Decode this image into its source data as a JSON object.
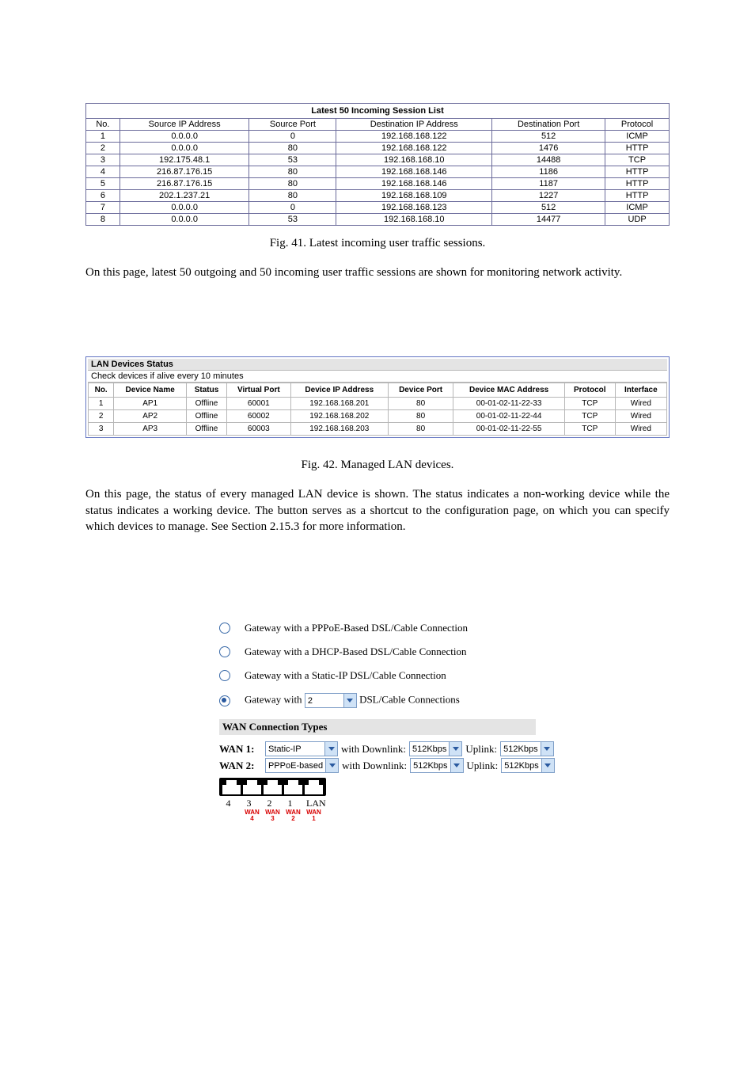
{
  "sessions": {
    "title": "Latest 50 Incoming Session List",
    "columns": [
      "No.",
      "Source IP Address",
      "Source Port",
      "Destination IP Address",
      "Destination Port",
      "Protocol"
    ],
    "rows": [
      [
        "1",
        "0.0.0.0",
        "0",
        "192.168.168.122",
        "512",
        "ICMP"
      ],
      [
        "2",
        "0.0.0.0",
        "80",
        "192.168.168.122",
        "1476",
        "HTTP"
      ],
      [
        "3",
        "192.175.48.1",
        "53",
        "192.168.168.10",
        "14488",
        "TCP"
      ],
      [
        "4",
        "216.87.176.15",
        "80",
        "192.168.168.146",
        "1186",
        "HTTP"
      ],
      [
        "5",
        "216.87.176.15",
        "80",
        "192.168.168.146",
        "1187",
        "HTTP"
      ],
      [
        "6",
        "202.1.237.21",
        "80",
        "192.168.168.109",
        "1227",
        "HTTP"
      ],
      [
        "7",
        "0.0.0.0",
        "0",
        "192.168.168.123",
        "512",
        "ICMP"
      ],
      [
        "8",
        "0.0.0.0",
        "53",
        "192.168.168.10",
        "14477",
        "UDP"
      ]
    ]
  },
  "caption1": "Fig. 41. Latest incoming user traffic sessions.",
  "para1": "On this page, latest 50 outgoing and 50 incoming user traffic sessions are shown for monitoring network activity.",
  "lan": {
    "bar": "LAN Devices Status",
    "sub": "Check devices if alive every 10 minutes",
    "columns": [
      "No.",
      "Device Name",
      "Status",
      "Virtual Port",
      "Device IP Address",
      "Device Port",
      "Device MAC Address",
      "Protocol",
      "Interface"
    ],
    "rows": [
      [
        "1",
        "AP1",
        "Offline",
        "60001",
        "192.168.168.201",
        "80",
        "00-01-02-11-22-33",
        "TCP",
        "Wired"
      ],
      [
        "2",
        "AP2",
        "Offline",
        "60002",
        "192.168.168.202",
        "80",
        "00-01-02-11-22-44",
        "TCP",
        "Wired"
      ],
      [
        "3",
        "AP3",
        "Offline",
        "60003",
        "192.168.168.203",
        "80",
        "00-01-02-11-22-55",
        "TCP",
        "Wired"
      ]
    ]
  },
  "caption2": "Fig. 42. Managed LAN devices.",
  "para2": "On this page, the status of every managed LAN device is shown. The             status indicates a non-working device while the             status indicates a working device. The                   button serves as a shortcut to the                                                        configuration page, on which you can specify which devices to manage. See Section 2.15.3 for more information.",
  "wan": {
    "opt1": "Gateway with a PPPoE-Based DSL/Cable Connection",
    "opt2": "Gateway with a DHCP-Based DSL/Cable Connection",
    "opt3": "Gateway with a Static-IP DSL/Cable Connection",
    "opt4_pre": "Gateway with",
    "opt4_sel": "2",
    "opt4_post": "DSL/Cable Connections",
    "heading": "WAN Connection Types",
    "wan1_label": "WAN 1:",
    "wan1_type": "Static-IP",
    "wan2_label": "WAN 2:",
    "wan2_type": "PPPoE-based",
    "with_dl": "with Downlink:",
    "uplink": "Uplink:",
    "rate": "512Kbps",
    "ports": [
      "4",
      "3",
      "2",
      "1"
    ],
    "lan_label": "LAN",
    "wan_ports": [
      "WAN\n4",
      "WAN\n3",
      "WAN\n2",
      "WAN\n1"
    ]
  }
}
